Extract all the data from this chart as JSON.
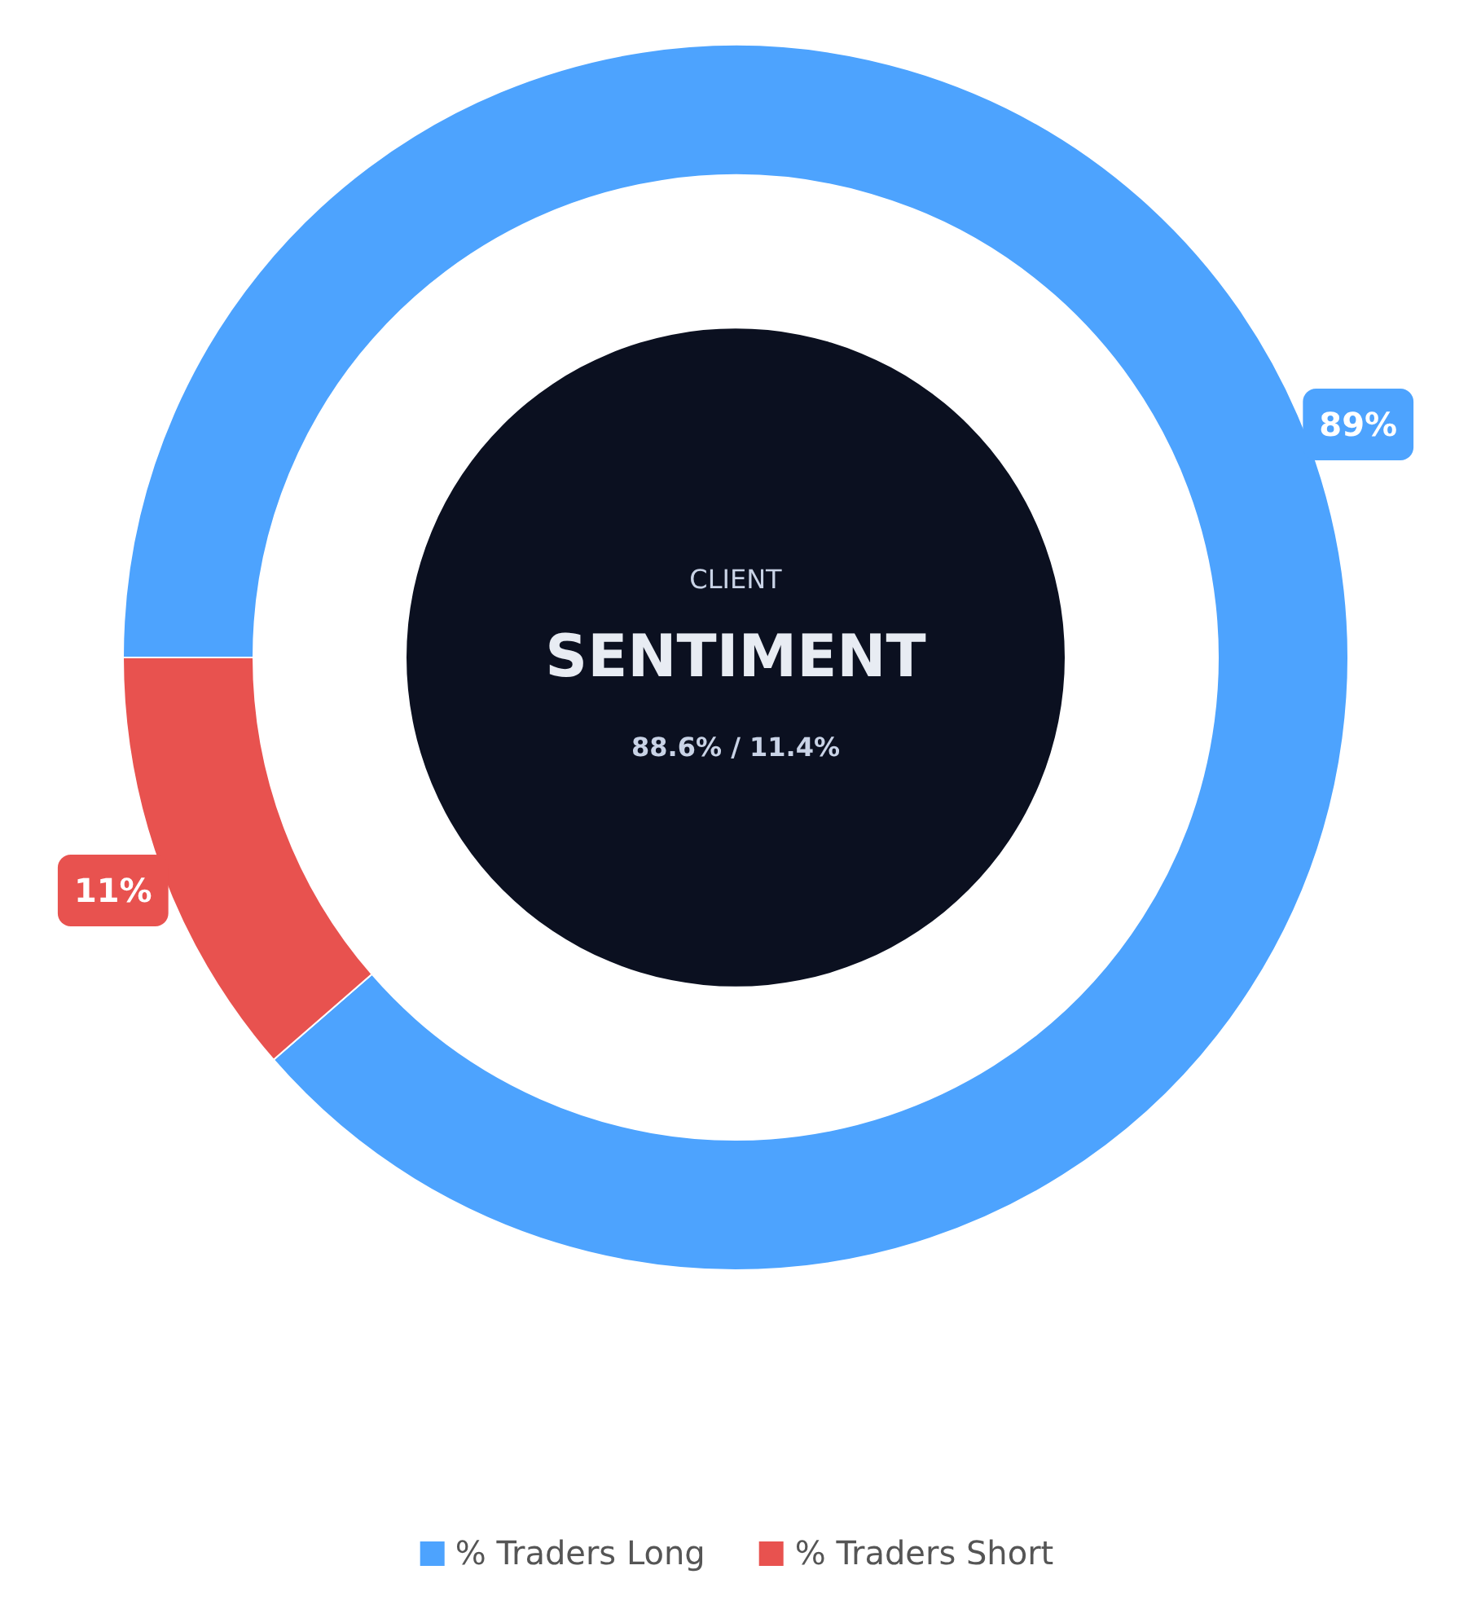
{
  "chart_data": {
    "type": "donut",
    "categories": [
      "% Traders Long",
      "% Traders Short"
    ],
    "values": [
      88.6,
      11.4
    ],
    "colors": [
      "#4da3fe",
      "#e8524f"
    ],
    "value_labels": [
      "89%",
      "11%"
    ],
    "annotations": [
      "CLIENT",
      "SENTIMENT",
      "88.6% / 11.4%"
    ],
    "legend": "bottom"
  }
}
